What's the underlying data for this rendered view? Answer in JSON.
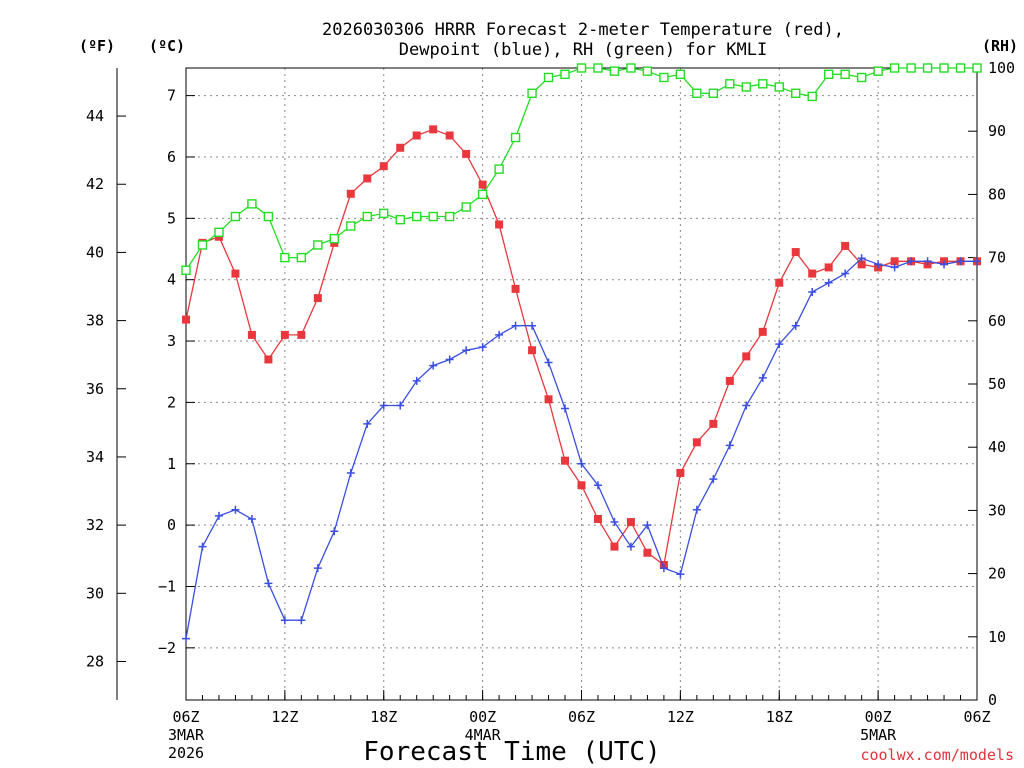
{
  "title_line1": "2026030306 HRRR Forecast 2-meter Temperature (red),",
  "title_line2": "Dewpoint (blue), RH (green) for KMLI",
  "units": {
    "fahrenheit": "(ºF)",
    "celsius": "(ºC)",
    "rh": "(RH)"
  },
  "xlabel": "Forecast Time (UTC)",
  "credit": "coolwx.com/models",
  "chart_data": {
    "type": "line",
    "title": "2026030306 HRRR Forecast 2-meter Temperature (red), Dewpoint (blue), RH (green) for KMLI",
    "xlabel": "Forecast Time (UTC)",
    "forecast_hours": [
      0,
      1,
      2,
      3,
      4,
      5,
      6,
      7,
      8,
      9,
      10,
      11,
      12,
      13,
      14,
      15,
      16,
      17,
      18,
      19,
      20,
      21,
      22,
      23,
      24,
      25,
      26,
      27,
      28,
      29,
      30,
      31,
      32,
      33,
      34,
      35,
      36,
      37,
      38,
      39,
      40,
      41,
      42,
      43,
      44,
      45,
      46,
      47,
      48
    ],
    "x_ticks": [
      {
        "hour": 0,
        "label": "06Z",
        "sub1": "3MAR",
        "sub2": "2026"
      },
      {
        "hour": 6,
        "label": "12Z",
        "sub1": "",
        "sub2": ""
      },
      {
        "hour": 12,
        "label": "18Z",
        "sub1": "",
        "sub2": ""
      },
      {
        "hour": 18,
        "label": "00Z",
        "sub1": "4MAR",
        "sub2": ""
      },
      {
        "hour": 24,
        "label": "06Z",
        "sub1": "",
        "sub2": ""
      },
      {
        "hour": 30,
        "label": "12Z",
        "sub1": "",
        "sub2": ""
      },
      {
        "hour": 36,
        "label": "18Z",
        "sub1": "",
        "sub2": ""
      },
      {
        "hour": 42,
        "label": "00Z",
        "sub1": "5MAR",
        "sub2": ""
      },
      {
        "hour": 48,
        "label": "06Z",
        "sub1": "",
        "sub2": ""
      }
    ],
    "celsius_axis": {
      "range": [
        -2.85,
        7.45
      ],
      "ticks": [
        "-2",
        "-1",
        "0",
        "1",
        "2",
        "3",
        "4",
        "5",
        "6",
        "7"
      ]
    },
    "fahrenheit_axis": {
      "ticks": [
        "28",
        "30",
        "32",
        "34",
        "36",
        "38",
        "40",
        "42",
        "44"
      ]
    },
    "rh_axis": {
      "range": [
        0,
        100
      ],
      "ticks": [
        "0",
        "10",
        "20",
        "30",
        "40",
        "50",
        "60",
        "70",
        "80",
        "90",
        "100"
      ]
    },
    "series": [
      {
        "name": "2-meter Temperature",
        "units": "degC",
        "color": "#e8383d",
        "marker": "filled-square",
        "values": [
          3.35,
          4.6,
          4.7,
          4.1,
          3.1,
          2.7,
          3.1,
          3.1,
          3.7,
          4.6,
          5.4,
          5.65,
          5.85,
          6.15,
          6.35,
          6.45,
          6.35,
          6.05,
          5.55,
          4.9,
          3.85,
          2.85,
          2.05,
          1.05,
          0.65,
          0.1,
          -0.35,
          0.05,
          -0.45,
          -0.65,
          0.85,
          1.35,
          1.65,
          2.35,
          2.75,
          3.15,
          3.95,
          4.45,
          4.1,
          4.2,
          4.55,
          4.25,
          4.2,
          4.3,
          4.3,
          4.25,
          4.3,
          4.3,
          4.3
        ]
      },
      {
        "name": "Dewpoint",
        "units": "degC",
        "color": "#3a4fe0",
        "marker": "plus",
        "values": [
          -1.85,
          -0.35,
          0.15,
          0.25,
          0.1,
          -0.95,
          -1.55,
          -1.55,
          -0.7,
          -0.1,
          0.85,
          1.65,
          1.95,
          1.95,
          2.35,
          2.6,
          2.7,
          2.85,
          2.9,
          3.1,
          3.25,
          3.25,
          2.65,
          1.9,
          1.0,
          0.65,
          0.05,
          -0.35,
          0.0,
          -0.7,
          -0.8,
          0.25,
          0.75,
          1.3,
          1.95,
          2.4,
          2.95,
          3.25,
          3.8,
          3.95,
          4.1,
          4.35,
          4.25,
          4.2,
          4.3,
          4.3,
          4.25,
          4.3,
          4.3
        ]
      },
      {
        "name": "Relative Humidity",
        "units": "%",
        "color": "#22dd22",
        "marker": "open-square",
        "values": [
          68,
          72,
          74,
          76.5,
          78.5,
          76.5,
          70,
          70,
          72,
          73,
          75,
          76.5,
          77,
          76,
          76.5,
          76.5,
          76.5,
          78,
          80,
          84,
          89,
          96,
          98.5,
          99,
          100,
          100,
          99.5,
          100,
          99.5,
          98.5,
          99,
          96,
          96,
          97.5,
          97,
          97.5,
          97,
          96,
          95.5,
          99,
          99,
          98.5,
          99.5,
          100,
          100,
          100,
          100,
          100,
          100
        ]
      }
    ]
  }
}
